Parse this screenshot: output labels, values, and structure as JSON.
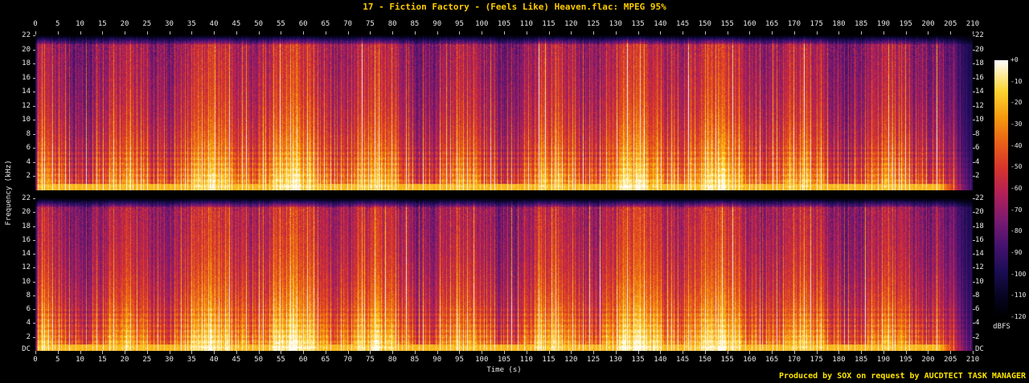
{
  "title": "17 - Fiction Factory - (Feels Like) Heaven.flac: MPEG 95%",
  "credit": "Produced by SOX on request by AUCDTECT TASK MANAGER",
  "colors": {
    "background": "#000000",
    "title_text": "#ffcc00",
    "credit_text": "#ffe600",
    "axis_text": "#e8e8e8",
    "tick_mark": "#bbbbbb"
  },
  "chart_data": {
    "type": "heatmap",
    "subtype": "audio-spectrogram",
    "title": "17 - Fiction Factory - (Feels Like) Heaven.flac: MPEG 95%",
    "xlabel": "Time (s)",
    "ylabel": "Frequency (kHz)",
    "x_range_s": [
      0,
      210
    ],
    "x_tick_step_s": 5,
    "x_ticks": [
      0,
      5,
      10,
      15,
      20,
      25,
      30,
      35,
      40,
      45,
      50,
      55,
      60,
      65,
      70,
      75,
      80,
      85,
      90,
      95,
      100,
      105,
      110,
      115,
      120,
      125,
      130,
      135,
      140,
      145,
      150,
      155,
      160,
      165,
      170,
      175,
      180,
      185,
      190,
      195,
      200,
      205,
      210
    ],
    "y_range_khz": [
      0,
      22
    ],
    "y_ticks": [
      "22",
      "20",
      "18",
      "16",
      "14",
      "12",
      "10",
      "8",
      "6",
      "4",
      "2"
    ],
    "y_bottom_label": "DC",
    "channels": [
      "left",
      "right"
    ],
    "legend": {
      "title": "dBFS",
      "ticks": [
        "+0",
        "-10",
        "-20",
        "-30",
        "-40",
        "-50",
        "-60",
        "-70",
        "-80",
        "-90",
        "-100",
        "-110",
        "-120"
      ],
      "range_db": [
        0,
        -120
      ]
    },
    "palette_stops": [
      {
        "v": 0.0,
        "c": "#000000"
      },
      {
        "v": 0.08,
        "c": "#06041f"
      },
      {
        "v": 0.18,
        "c": "#1c0d55"
      },
      {
        "v": 0.28,
        "c": "#46126f"
      },
      {
        "v": 0.38,
        "c": "#7c1a70"
      },
      {
        "v": 0.48,
        "c": "#b22057"
      },
      {
        "v": 0.58,
        "c": "#d6342c"
      },
      {
        "v": 0.68,
        "c": "#ea6117"
      },
      {
        "v": 0.78,
        "c": "#f69b0f"
      },
      {
        "v": 0.88,
        "c": "#fcd430"
      },
      {
        "v": 1.0,
        "c": "#ffffff"
      }
    ],
    "content": {
      "beat_period_s": 0.4717,
      "lowpass_cutoff_khz": 20.8,
      "fadeout_start_s": 202.5,
      "fadeout_end_s": 210,
      "intro_silence_s": 0.4,
      "low_freq_bright_band_khz": 0.9
    }
  }
}
